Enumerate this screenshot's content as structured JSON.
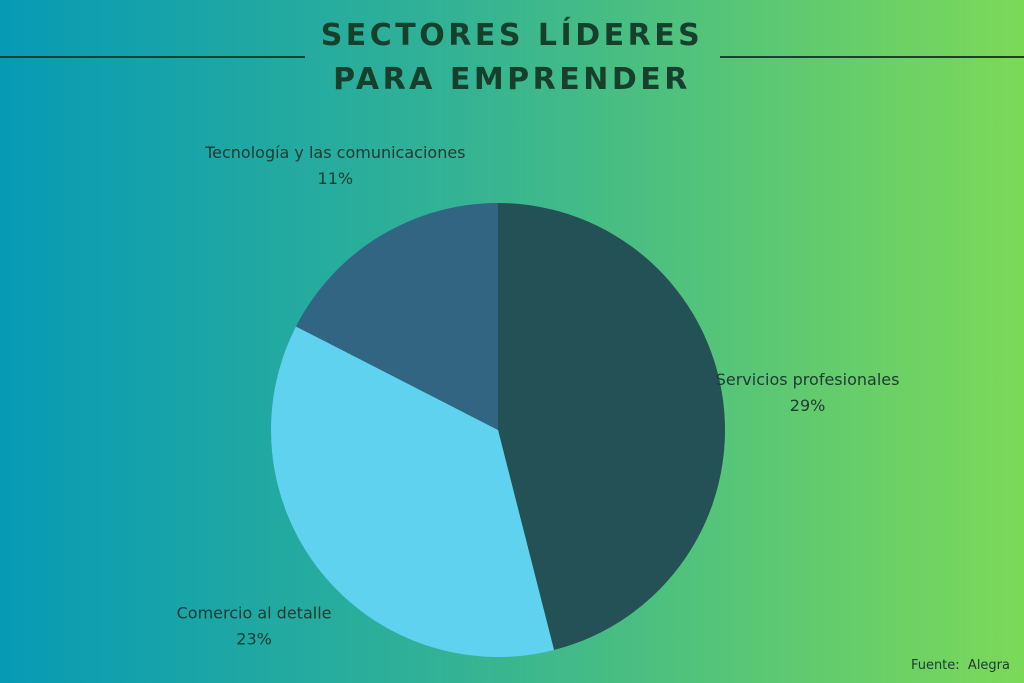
{
  "chart_data": {
    "type": "pie",
    "title": "SECTORES LÍDERES PARA EMPRENDER",
    "categories": [
      "Servicios profesionales",
      "Comercio al detalle",
      "Tecnología y las comunicaciones"
    ],
    "values": [
      29,
      23,
      11
    ],
    "value_labels": [
      "29%",
      "23%",
      "11%"
    ],
    "colors": [
      "#235155",
      "#5fd2ef",
      "#326581"
    ],
    "source": "Fuente:  Alegra"
  }
}
